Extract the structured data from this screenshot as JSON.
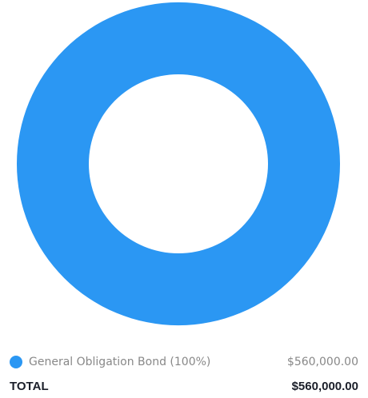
{
  "chart_data": {
    "type": "pie",
    "donut": true,
    "categories": [
      "General Obligation Bond"
    ],
    "values": [
      560000
    ],
    "percent_labels": [
      "(100%)"
    ],
    "value_labels": [
      "$560,000.00"
    ],
    "colors": [
      "#2b97f3"
    ]
  },
  "legend": {
    "items": [
      {
        "label": "General Obligation Bond (100%)",
        "value": "$560,000.00",
        "color": "#2b97f3"
      }
    ]
  },
  "total": {
    "label": "TOTAL",
    "value": "$560,000.00"
  }
}
